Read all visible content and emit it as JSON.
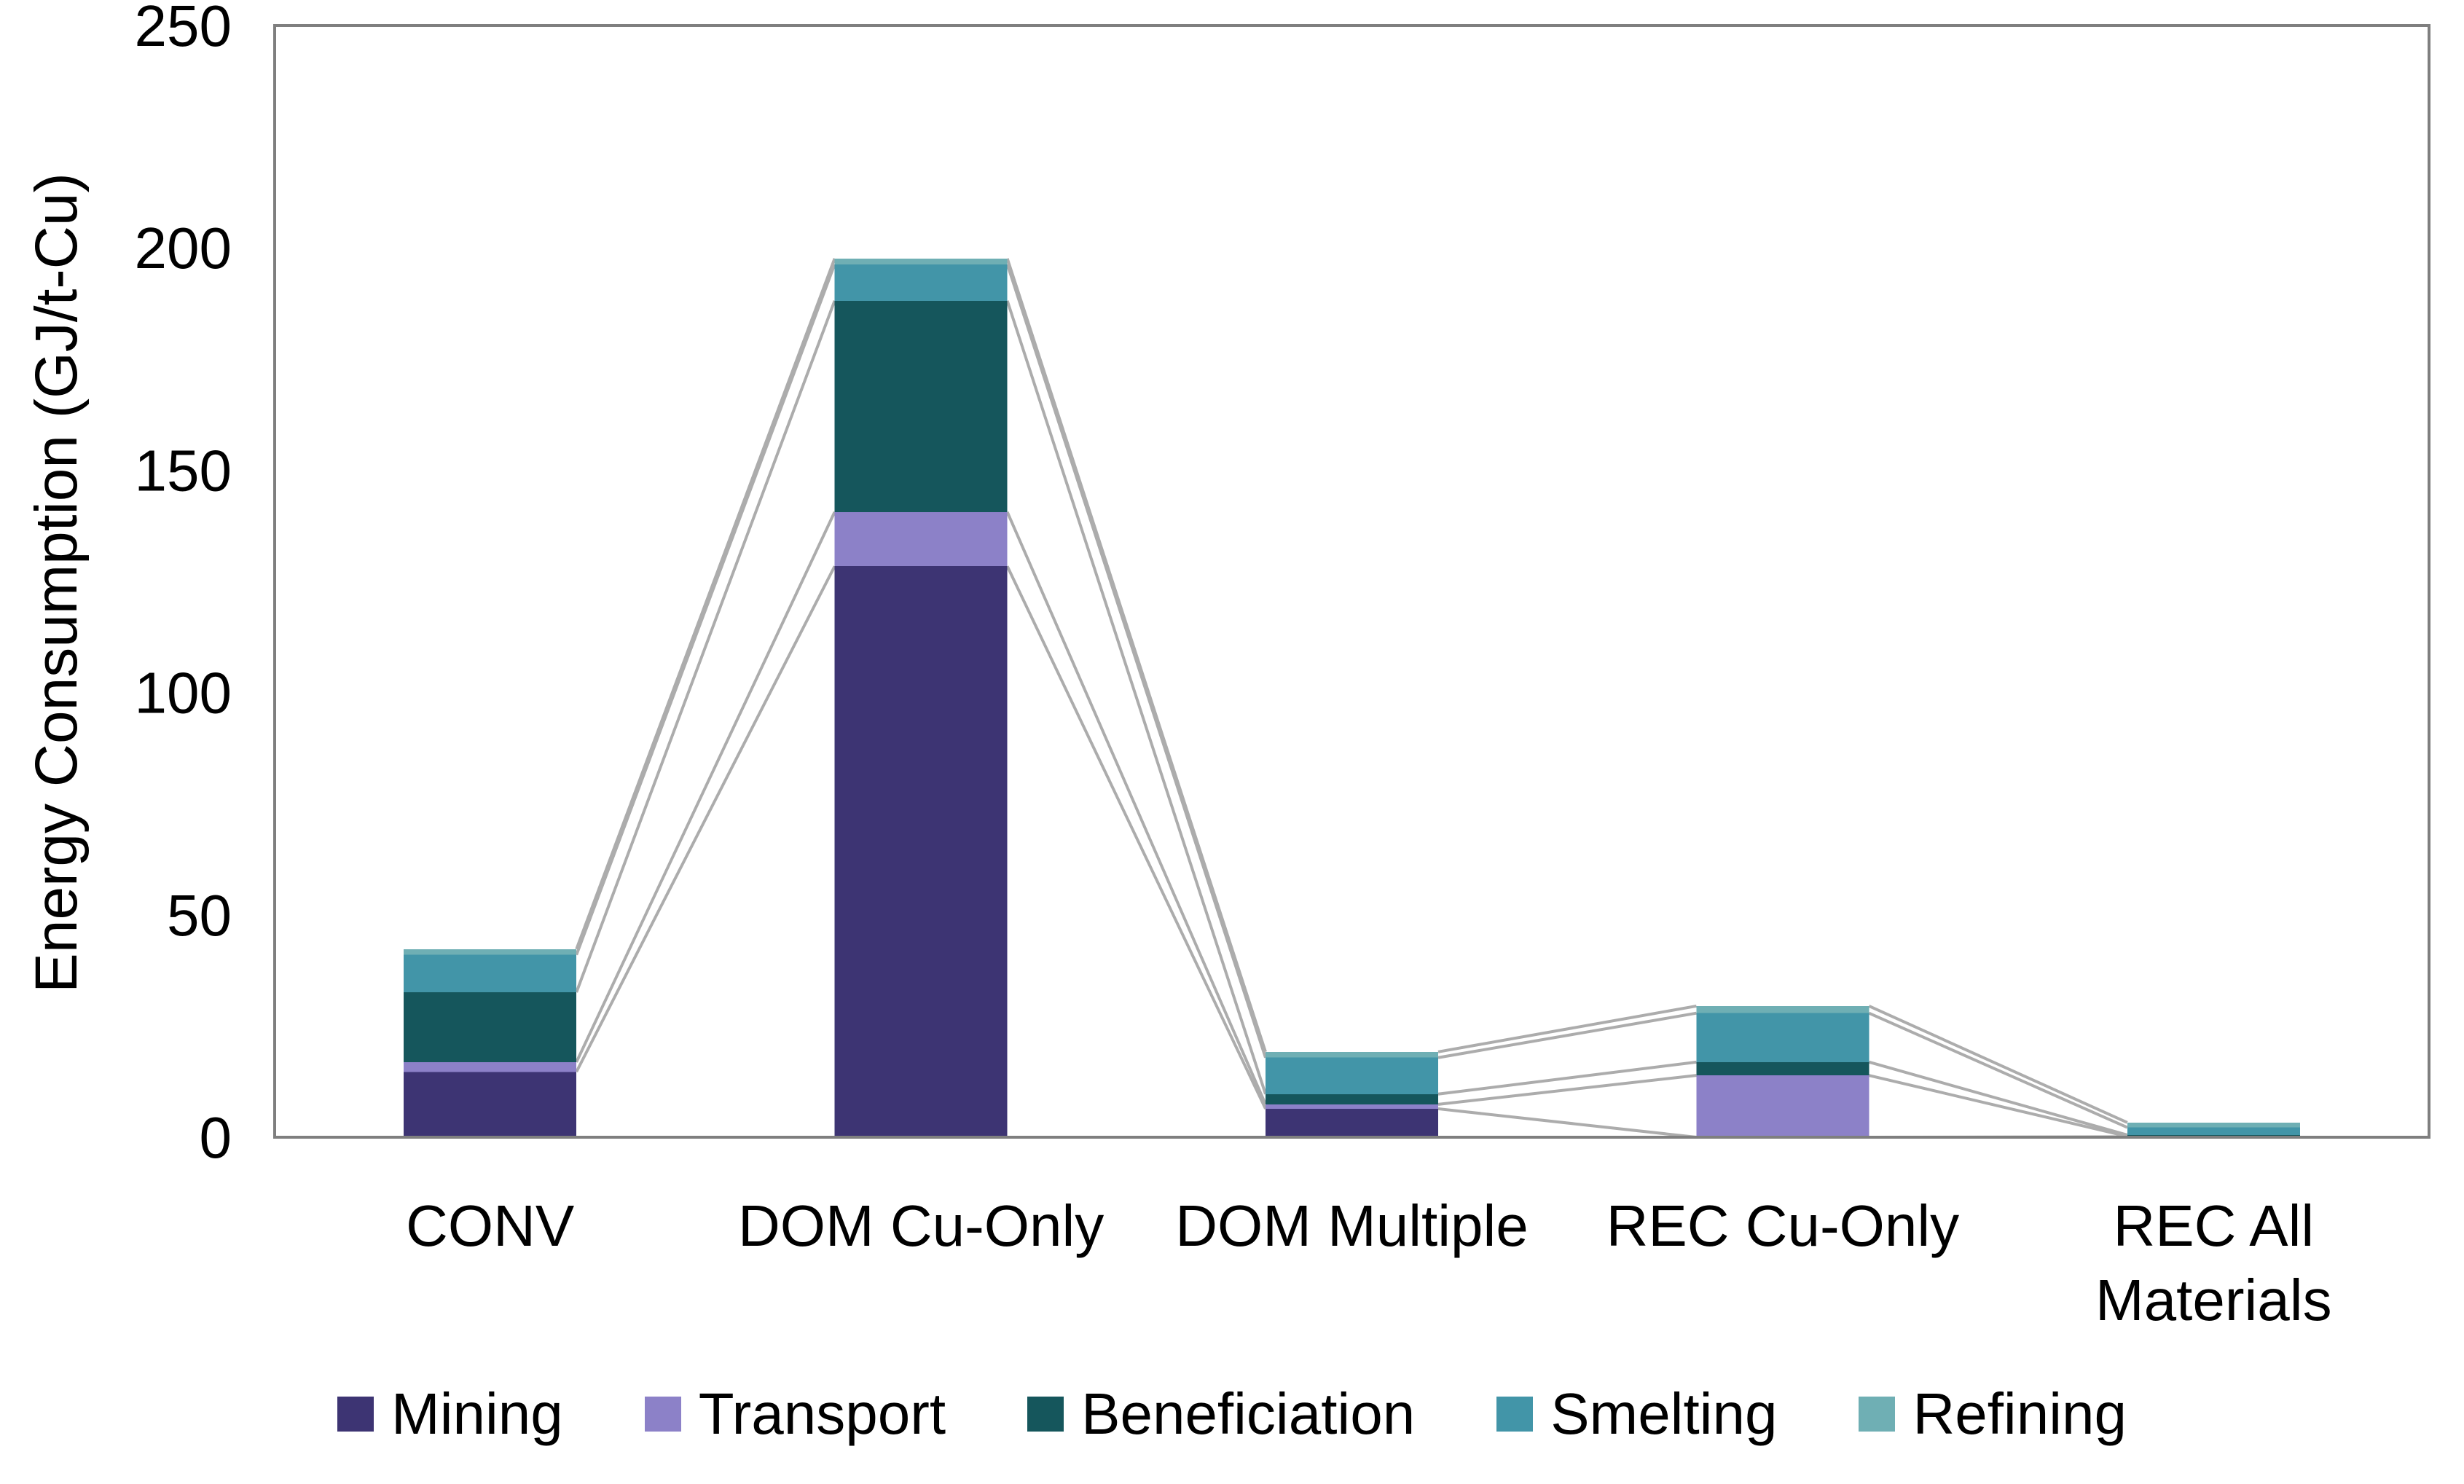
{
  "chart_data": {
    "type": "bar",
    "stacked": true,
    "ylabel": "Energy Consumption (GJ/t-Cu)",
    "ylim": [
      0,
      250
    ],
    "yticks": [
      0,
      50,
      100,
      150,
      200,
      250
    ],
    "grid": false,
    "legend_position": "bottom",
    "series_lines": true,
    "axis_color": "#7F7F7F",
    "series_line_color": "#ACACAC",
    "categories": [
      {
        "label": "CONV",
        "lines": [
          "CONV"
        ]
      },
      {
        "label": "DOM Cu-Only",
        "lines": [
          "DOM Cu-Only"
        ]
      },
      {
        "label": "DOM Multiple",
        "lines": [
          "DOM Multiple"
        ]
      },
      {
        "label": "REC Cu-Only",
        "lines": [
          "REC Cu-Only"
        ]
      },
      {
        "label": "REC All Materials",
        "lines": [
          "REC All",
          "Materials"
        ]
      }
    ],
    "series": [
      {
        "name": "Mining",
        "color": "#3D3473",
        "values": [
          14.7,
          128.4,
          6.4,
          0,
          0.1
        ]
      },
      {
        "name": "Transport",
        "color": "#8C81C8",
        "values": [
          2.2,
          12.2,
          1.0,
          13.9,
          0.1
        ]
      },
      {
        "name": "Beneficiation",
        "color": "#15565C",
        "values": [
          15.7,
          47.5,
          2.3,
          3.0,
          0.3
        ]
      },
      {
        "name": "Smelting",
        "color": "#4295A8",
        "values": [
          8.4,
          8.2,
          8.2,
          11.0,
          1.7
        ]
      },
      {
        "name": "Refining",
        "color": "#6FAFB4",
        "values": [
          1.3,
          1.3,
          1.3,
          1.6,
          1.1
        ]
      }
    ]
  }
}
